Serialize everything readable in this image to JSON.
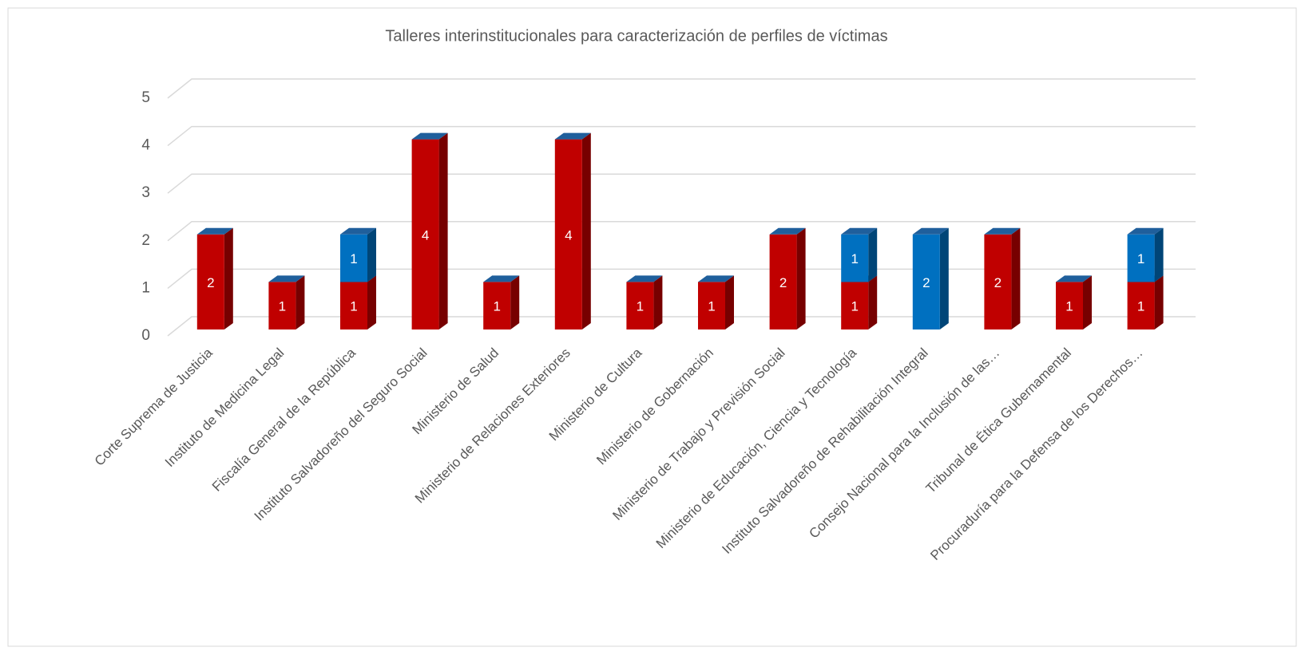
{
  "chart_data": {
    "type": "bar3d_stacked",
    "title": "Talleres interinstitucionales para caracterización de perfiles de víctimas",
    "categories": [
      "Corte Suprema de Justicia",
      "Instituto de Medicina Legal",
      "Fiscalía General de la República",
      "Instituto Salvadoreño del Seguro Social",
      "Ministerio de Salud",
      "Ministerio de Relaciones Exteriores",
      "Ministerio de Cultura",
      "Ministerio de Gobernación",
      "Ministerio de Trabajo y Previsión Social",
      "Ministerio de Educación, Ciencia y Tecnología",
      "Instituto Salvadoreño de Rehabilitación Integral",
      "Consejo Nacional para la Inclusión de las…",
      "Tribunal de Ética Gubernamental",
      "Procuraduría para la Defensa de los Derechos…"
    ],
    "series": [
      {
        "color": "#c00000",
        "values": [
          2,
          1,
          1,
          4,
          1,
          4,
          1,
          1,
          2,
          1,
          null,
          2,
          1,
          1
        ]
      },
      {
        "color": "#0070c0",
        "values": [
          null,
          null,
          1,
          null,
          null,
          null,
          null,
          null,
          null,
          1,
          2,
          null,
          null,
          1
        ]
      }
    ],
    "ylim": [
      0,
      5
    ],
    "yticks": [
      0,
      1,
      2,
      3,
      4,
      5
    ],
    "grid": true
  }
}
